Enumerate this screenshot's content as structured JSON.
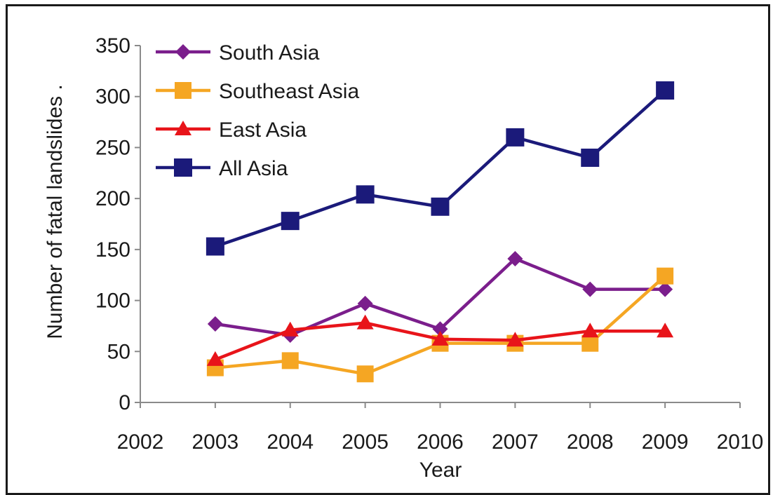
{
  "chart_data": {
    "type": "line",
    "title": "",
    "xlabel": "Year",
    "ylabel": "Number of fatal landslides  .",
    "x": [
      2003,
      2004,
      2005,
      2006,
      2007,
      2008,
      2009
    ],
    "xlim": [
      2002,
      2010
    ],
    "xticks": [
      "2002",
      "2003",
      "2004",
      "2005",
      "2006",
      "2007",
      "2008",
      "2009",
      "2010"
    ],
    "ylim": [
      0,
      350
    ],
    "yticks": [
      "0",
      "50",
      "100",
      "150",
      "200",
      "250",
      "300",
      "350"
    ],
    "grid": false,
    "legend_position": "top-left",
    "series": [
      {
        "name": "South Asia",
        "color": "#7B1E8C",
        "marker": "diamond",
        "values": [
          77,
          66,
          97,
          72,
          141,
          111,
          111
        ]
      },
      {
        "name": "Southeast Asia",
        "color": "#F5A623",
        "marker": "square",
        "values": [
          34,
          41,
          28,
          58,
          58,
          58,
          124
        ]
      },
      {
        "name": "East Asia",
        "color": "#E8141A",
        "marker": "triangle",
        "values": [
          42,
          71,
          78,
          62,
          61,
          70,
          70
        ]
      },
      {
        "name": "All Asia",
        "color": "#1B1A7A",
        "marker": "square",
        "values": [
          153,
          178,
          204,
          192,
          260,
          240,
          306
        ]
      }
    ]
  }
}
